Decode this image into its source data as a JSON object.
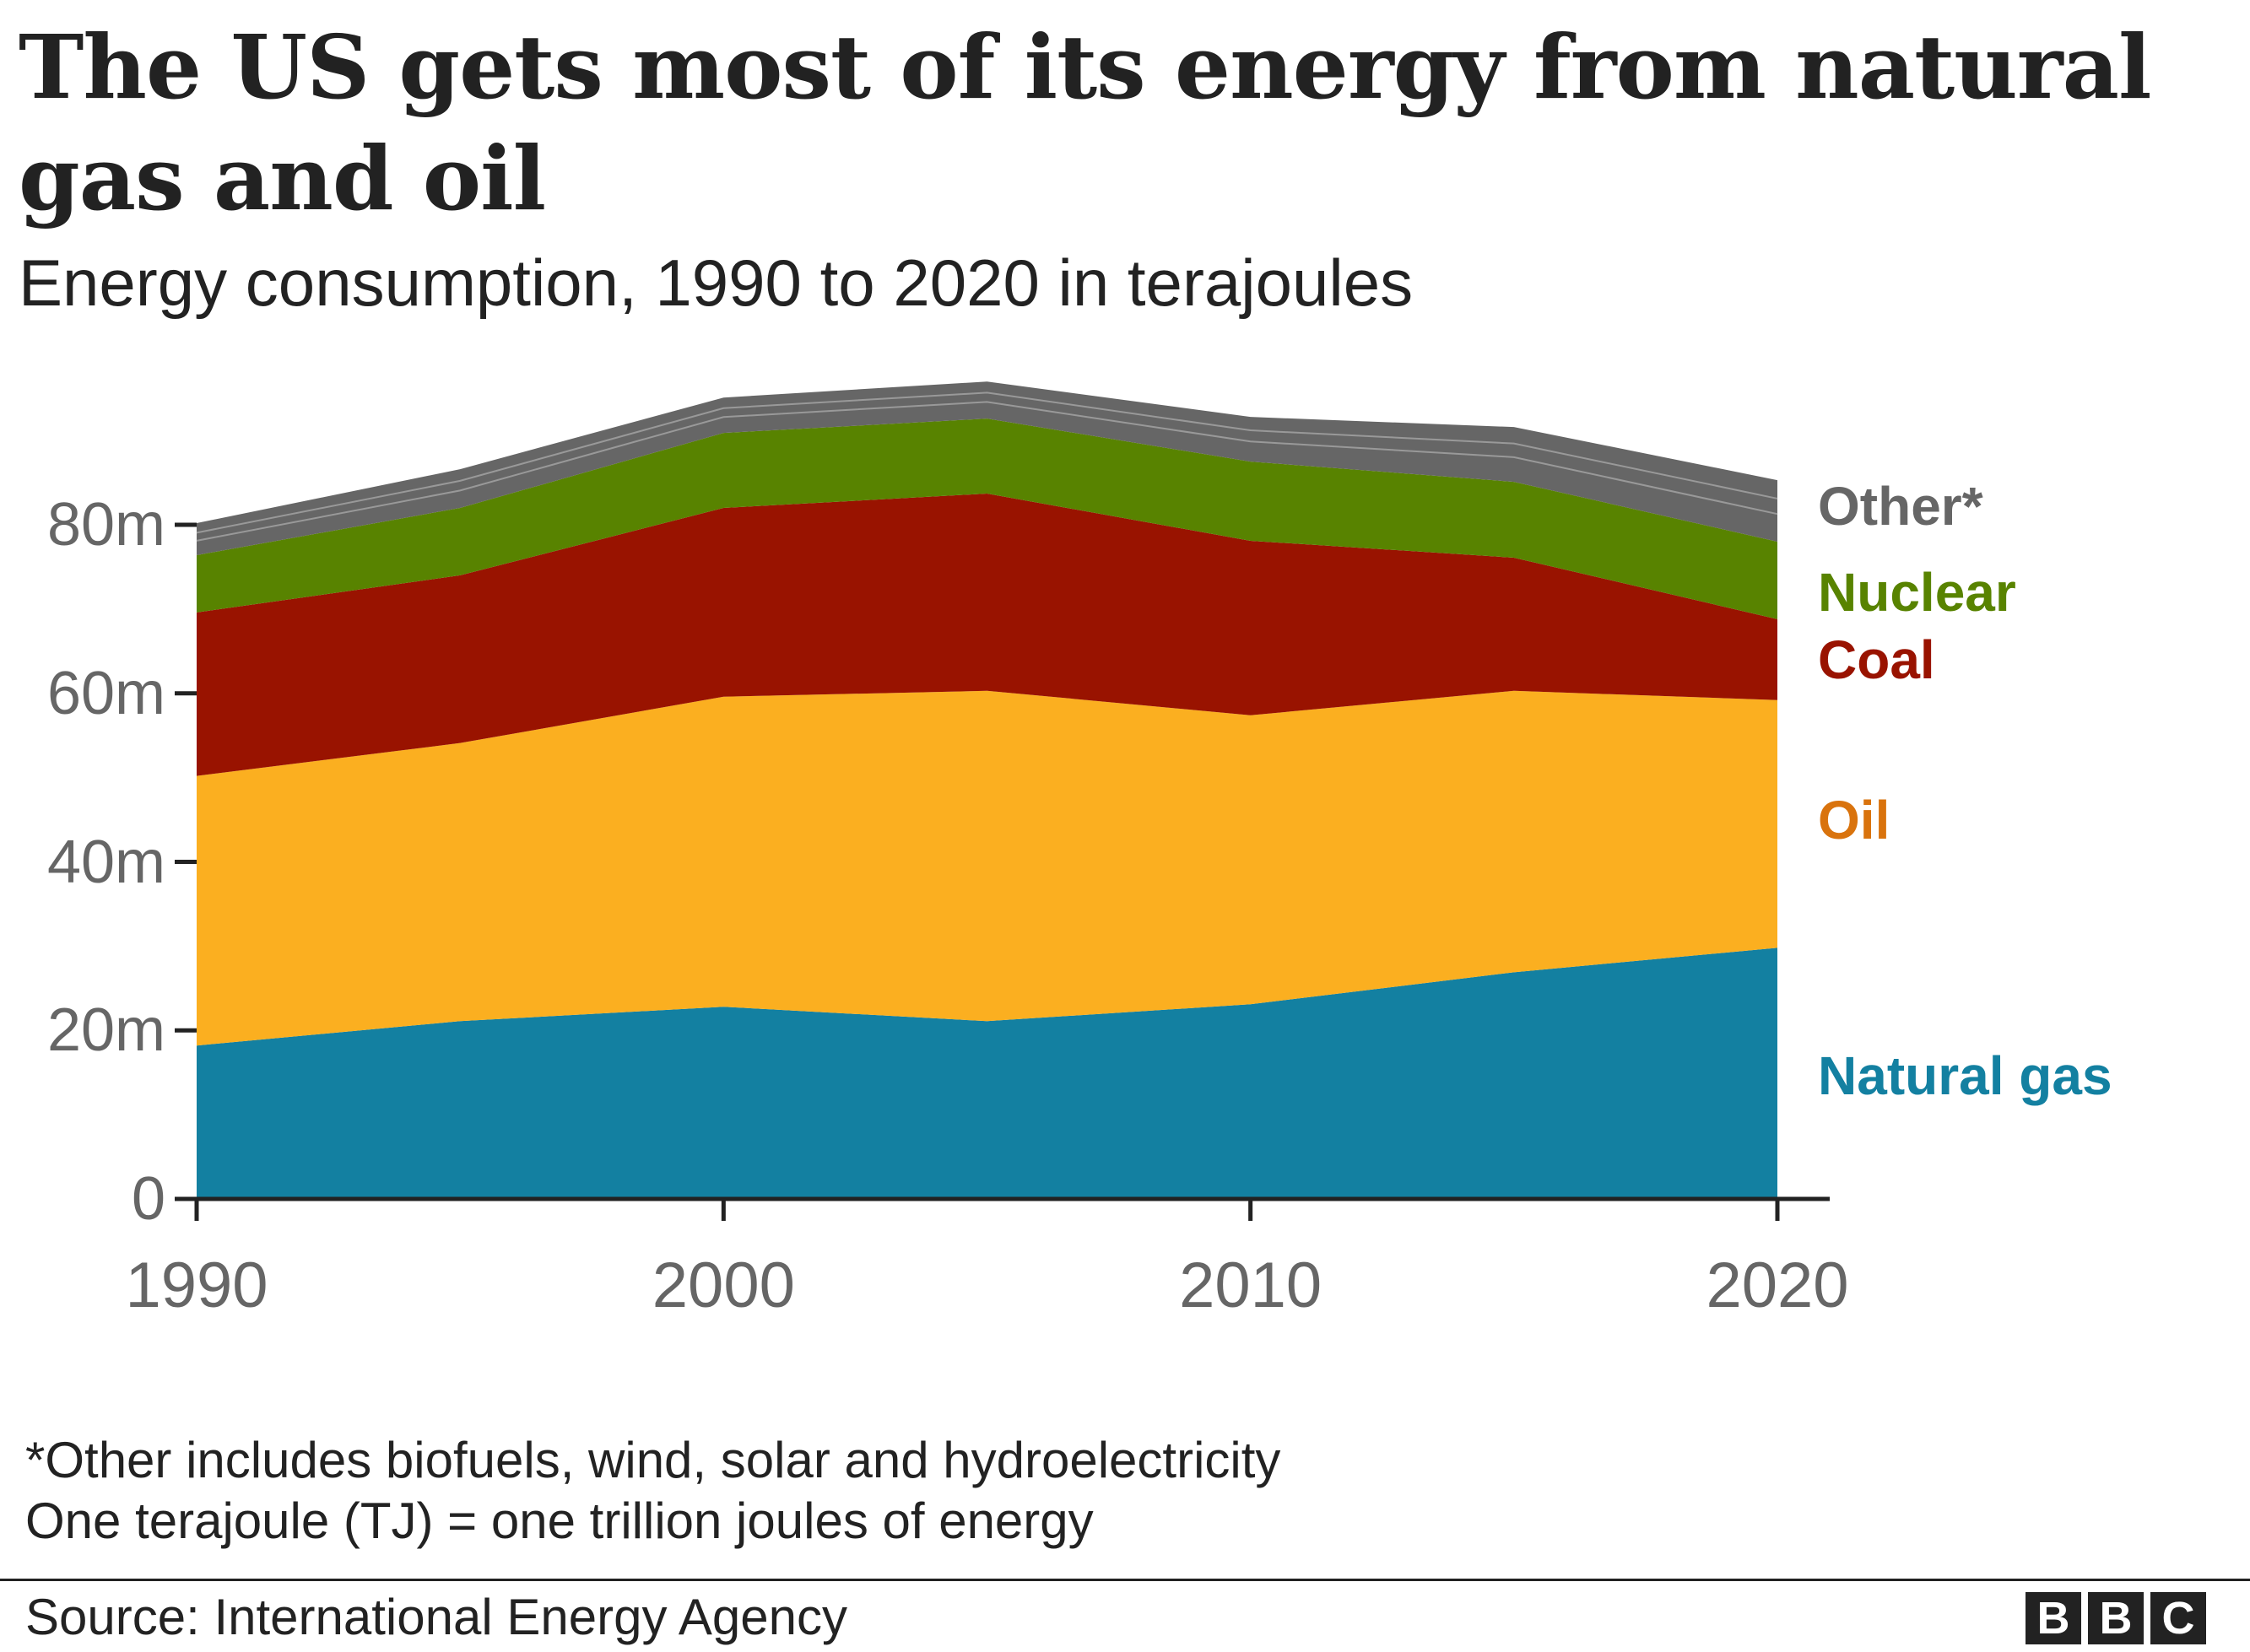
{
  "header": {
    "title": "The US gets most of its energy from natural gas and oil",
    "subtitle": "Energy consumption, 1990 to 2020 in terajoules"
  },
  "chart_data": {
    "type": "area",
    "stacked": true,
    "title": "The US gets most of its energy from natural gas and oil",
    "subtitle": "Energy consumption, 1990 to 2020 in terajoules",
    "xlabel": "",
    "ylabel": "",
    "x": [
      1990,
      1995,
      2000,
      2005,
      2010,
      2015,
      2020
    ],
    "xlim": [
      1990,
      2020
    ],
    "ylim": [
      0,
      100000000
    ],
    "x_ticks": [
      "1990",
      "2000",
      "2010",
      "2020"
    ],
    "y_ticks": [
      "0",
      "20m",
      "40m",
      "60m",
      "80m"
    ],
    "grid": false,
    "legend_placement": "right (direct labels)",
    "series": [
      {
        "name": "Natural gas",
        "color": "#1380a1",
        "label_color": "#1380a1",
        "values": [
          18200000,
          21100000,
          22800000,
          21100000,
          23100000,
          26900000,
          29800000
        ]
      },
      {
        "name": "Oil",
        "color": "#fbaf20",
        "label_color": "#d9730d",
        "values": [
          32000000,
          33000000,
          36800000,
          39200000,
          34300000,
          33400000,
          29400000
        ]
      },
      {
        "name": "Coal",
        "color": "#991300",
        "label_color": "#991300",
        "values": [
          19400000,
          19900000,
          22400000,
          23400000,
          20700000,
          15800000,
          9600000
        ]
      },
      {
        "name": "Nuclear",
        "color": "#588300",
        "label_color": "#588300",
        "values": [
          6800000,
          8000000,
          8900000,
          8900000,
          9400000,
          9000000,
          9200000
        ]
      },
      {
        "name": "Other*",
        "color": "#666666",
        "label_color": "#666666",
        "values": [
          3800000,
          4600000,
          4200000,
          4400000,
          5300000,
          6500000,
          7300000
        ]
      }
    ]
  },
  "footnotes": [
    "*Other includes biofuels, wind, solar and hydroelectricity",
    "One terajoule (TJ) = one trillion joules of energy"
  ],
  "source": "Source: International Energy Agency",
  "logo": {
    "letters": [
      "B",
      "B",
      "C"
    ]
  }
}
